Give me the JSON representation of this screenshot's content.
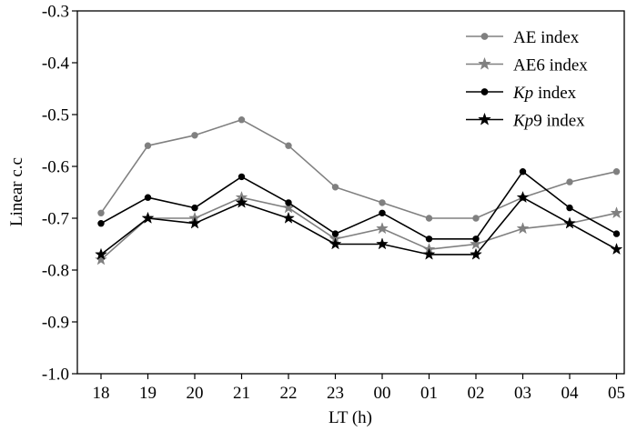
{
  "chart_data": {
    "type": "line",
    "title": "",
    "xlabel": "LT (h)",
    "ylabel": "Linear c.c",
    "categories": [
      "18",
      "19",
      "20",
      "21",
      "22",
      "23",
      "00",
      "01",
      "02",
      "03",
      "04",
      "05"
    ],
    "ylim": [
      -1.0,
      -0.3
    ],
    "yticks": [
      "-1.0",
      "-0.9",
      "-0.8",
      "-0.7",
      "-0.6",
      "-0.5",
      "-0.4",
      "-0.3"
    ],
    "ytick_values": [
      -1.0,
      -0.9,
      -0.8,
      -0.7,
      -0.6,
      -0.5,
      -0.4,
      -0.3
    ],
    "grid": false,
    "legend_position": "top-right",
    "series": [
      {
        "name": "AE index",
        "name_parts": [
          {
            "text": "AE",
            "italic": false
          },
          {
            "text": " index",
            "italic": false
          }
        ],
        "marker": "circle",
        "color": "#808080",
        "values": [
          -0.69,
          -0.56,
          -0.54,
          -0.51,
          -0.56,
          -0.64,
          -0.67,
          -0.7,
          -0.7,
          -0.66,
          -0.63,
          -0.61
        ]
      },
      {
        "name": "AE6 index",
        "name_parts": [
          {
            "text": "AE6",
            "italic": false
          },
          {
            "text": " index",
            "italic": false
          }
        ],
        "marker": "star",
        "color": "#808080",
        "values": [
          -0.78,
          -0.7,
          -0.7,
          -0.66,
          -0.68,
          -0.74,
          -0.72,
          -0.76,
          -0.75,
          -0.72,
          -0.71,
          -0.69
        ]
      },
      {
        "name": "Kp index",
        "name_parts": [
          {
            "text": "Kp",
            "italic": true
          },
          {
            "text": " index",
            "italic": false
          }
        ],
        "marker": "circle",
        "color": "#000000",
        "values": [
          -0.71,
          -0.66,
          -0.68,
          -0.62,
          -0.67,
          -0.73,
          -0.69,
          -0.74,
          -0.74,
          -0.61,
          -0.68,
          -0.73
        ]
      },
      {
        "name": "Kp9 index",
        "name_parts": [
          {
            "text": "Kp",
            "italic": true
          },
          {
            "text": "9 index",
            "italic": false
          }
        ],
        "marker": "star",
        "color": "#000000",
        "values": [
          -0.77,
          -0.7,
          -0.71,
          -0.67,
          -0.7,
          -0.75,
          -0.75,
          -0.77,
          -0.77,
          -0.66,
          -0.71,
          -0.76
        ]
      }
    ]
  }
}
